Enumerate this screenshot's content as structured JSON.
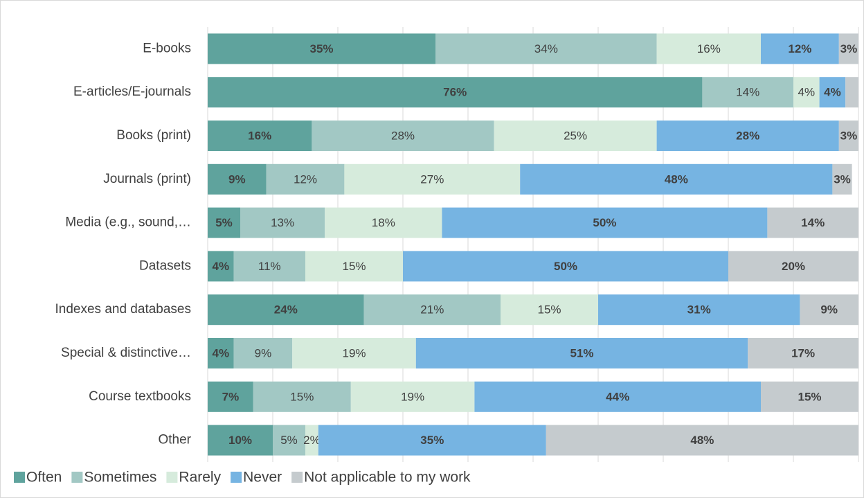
{
  "chart_data": {
    "type": "stacked_barh",
    "categories": [
      "E-books",
      "E-articles/E-journals",
      "Books (print)",
      "Journals (print)",
      "Media (e.g., sound,…",
      "Datasets",
      "Indexes and databases",
      "Special & distinctive…",
      "Course textbooks",
      "Other"
    ],
    "series": [
      {
        "name": "Often",
        "color": "#5fa39d",
        "values": [
          35,
          76,
          16,
          9,
          5,
          4,
          24,
          4,
          7,
          10
        ],
        "value_labels": [
          "35%",
          "76%",
          "16%",
          "9%",
          "5%",
          "4%",
          "24%",
          "4%",
          "7%",
          "10%"
        ]
      },
      {
        "name": "Sometimes",
        "color": "#a2c8c4",
        "values": [
          34,
          14,
          28,
          12,
          13,
          11,
          21,
          9,
          15,
          5
        ],
        "value_labels": [
          "34%",
          "14%",
          "28%",
          "12%",
          "13%",
          "11%",
          "21%",
          "9%",
          "15%",
          "5%"
        ]
      },
      {
        "name": "Rarely",
        "color": "#d6ebdc",
        "values": [
          16,
          4,
          25,
          27,
          18,
          15,
          15,
          19,
          19,
          2
        ],
        "value_labels": [
          "16%",
          "4%",
          "25%",
          "27%",
          "18%",
          "15%",
          "15%",
          "19%",
          "19%",
          "2%"
        ]
      },
      {
        "name": "Never",
        "color": "#76b4e2",
        "values": [
          12,
          4,
          28,
          48,
          50,
          50,
          31,
          51,
          44,
          35
        ],
        "value_labels": [
          "12%",
          "4%",
          "28%",
          "48%",
          "50%",
          "50%",
          "31%",
          "51%",
          "44%",
          "35%"
        ]
      },
      {
        "name": "Not applicable to my work",
        "color": "#c5cbce",
        "values": [
          3,
          2,
          3,
          3,
          14,
          20,
          9,
          17,
          15,
          48
        ],
        "value_labels": [
          "3%",
          null,
          "3%",
          "3%",
          "14%",
          "20%",
          "9%",
          "17%",
          "15%",
          "48%"
        ]
      }
    ],
    "xlim": [
      0,
      100
    ],
    "xticks": [
      0,
      10,
      20,
      30,
      40,
      50,
      60,
      70,
      80,
      90,
      100
    ],
    "grid": true,
    "legend": "bottom"
  }
}
